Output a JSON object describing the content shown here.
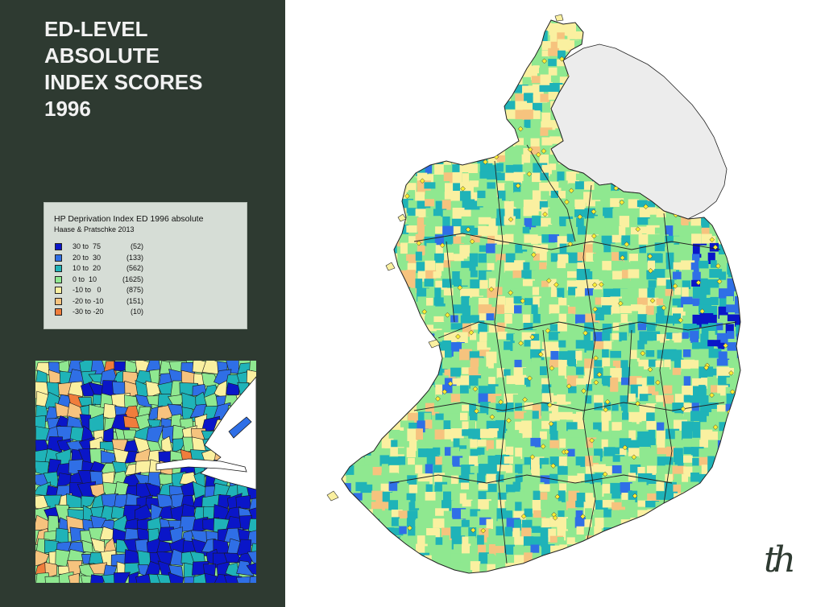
{
  "title": {
    "lines": [
      "ED-LEVEL",
      "ABSOLUTE",
      "INDEX SCORES",
      "1996"
    ]
  },
  "legend": {
    "title": "HP Deprivation Index ED 1996 absolute",
    "subtitle": "Haase & Pratschke 2013",
    "classes": [
      {
        "range": "30 to  75",
        "count": "(52)",
        "color": "#0a16c8"
      },
      {
        "range": "20 to  30",
        "count": "(133)",
        "color": "#2f6fe6"
      },
      {
        "range": "10 to  20",
        "count": "(562)",
        "color": "#1fb3b8"
      },
      {
        "range": "0 to  10",
        "count": "(1625)",
        "color": "#8fe890"
      },
      {
        "range": "-10 to   0",
        "count": "(875)",
        "color": "#faf0a0"
      },
      {
        "range": "-20 to -10",
        "count": "(151)",
        "color": "#f6c37e"
      },
      {
        "range": "-30 to -20",
        "count": "(10)",
        "color": "#f07d3c"
      }
    ]
  },
  "map": {
    "northern_ireland_color": "#ececec",
    "town_marker_color": "#ffee33",
    "boundary_color": "#222222"
  },
  "logo": {
    "text": "th"
  }
}
